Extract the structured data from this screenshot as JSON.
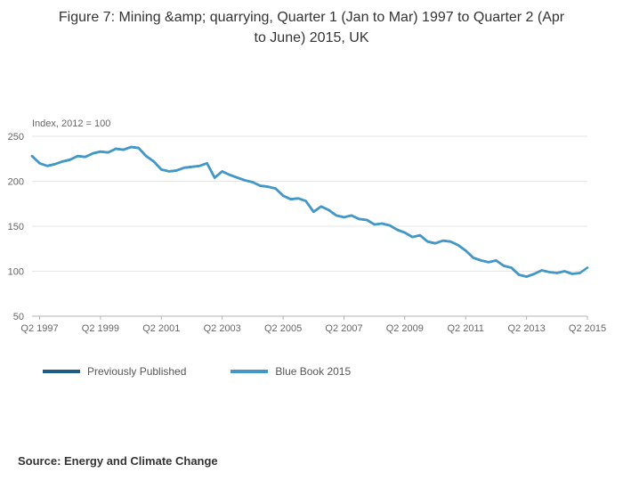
{
  "title": "Figure 7: Mining &amp; quarrying, Quarter 1 (Jan to Mar) 1997 to Quarter 2 (Apr to June) 2015, UK",
  "source": "Source: Energy and Climate Change",
  "chart_data": {
    "type": "line",
    "title": "Figure 7: Mining &amp; quarrying, Quarter 1 (Jan to Mar) 1997 to Quarter 2 (Apr to June) 2015, UK",
    "axis_note": "Index, 2012 = 100",
    "xlabel": "",
    "ylabel": "Index, 2012 = 100",
    "ylim": [
      50,
      250
    ],
    "yticks": [
      50,
      100,
      150,
      200,
      250
    ],
    "x_start": "1997 Q1",
    "x_end": "2015 Q2",
    "x_frequency": "quarterly",
    "xticks": [
      "Q2 1997",
      "Q2 1999",
      "Q2 2001",
      "Q2 2003",
      "Q2 2005",
      "Q2 2007",
      "Q2 2009",
      "Q2 2011",
      "Q2 2013",
      "Q2 2015"
    ],
    "xtick_indices": [
      1,
      9,
      17,
      25,
      33,
      41,
      49,
      57,
      65,
      73
    ],
    "grid": true,
    "legend_position": "bottom",
    "series": [
      {
        "name": "Previously Published",
        "color": "#1d5c87",
        "values": [
          228,
          220,
          217,
          219,
          222,
          224,
          228,
          227,
          231,
          233,
          232,
          236,
          235,
          238,
          237,
          228,
          222,
          213,
          211,
          212,
          215,
          216,
          217,
          220,
          204,
          211,
          207,
          204,
          201,
          199,
          195,
          194,
          192,
          184,
          180,
          181,
          178,
          166,
          172,
          168,
          162,
          160,
          162,
          158,
          157,
          152,
          153,
          151,
          146,
          143,
          138,
          140,
          133,
          131,
          134,
          133,
          129,
          123,
          115,
          112,
          110,
          112,
          106,
          104,
          96,
          94,
          97,
          101,
          99,
          98,
          100,
          97,
          98
        ]
      },
      {
        "name": "Blue Book 2015",
        "color": "#4198c9",
        "values": [
          228,
          220,
          217,
          219,
          222,
          224,
          228,
          227,
          231,
          233,
          232,
          236,
          235,
          238,
          237,
          228,
          222,
          213,
          211,
          212,
          215,
          216,
          217,
          220,
          204,
          211,
          207,
          204,
          201,
          199,
          195,
          194,
          192,
          184,
          180,
          181,
          178,
          166,
          172,
          168,
          162,
          160,
          162,
          158,
          157,
          152,
          153,
          151,
          146,
          143,
          138,
          140,
          133,
          131,
          134,
          133,
          129,
          123,
          115,
          112,
          110,
          112,
          106,
          104,
          96,
          94,
          97,
          101,
          99,
          98,
          100,
          97,
          98,
          104
        ]
      }
    ]
  },
  "legend": {
    "items": [
      {
        "label": "Previously Published"
      },
      {
        "label": "Blue Book 2015"
      }
    ]
  }
}
